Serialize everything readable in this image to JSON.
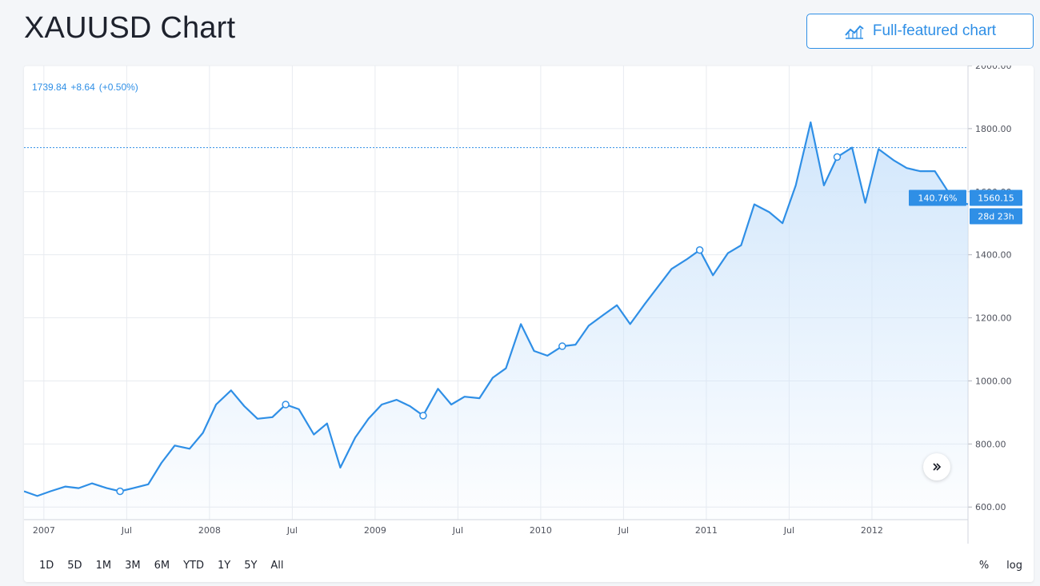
{
  "header": {
    "title": "XAUUSD Chart",
    "full_chart_label": "Full-featured chart"
  },
  "legend": {
    "price": "1739.84",
    "change": "+8.64",
    "change_pct": "(+0.50%)"
  },
  "crosshair": {
    "pct_label": "140.76%",
    "price_label": "1560.15",
    "time_label": "28d 23h",
    "price_line_value": 1739.84
  },
  "toolbar": {
    "ranges": [
      "1D",
      "5D",
      "1M",
      "3M",
      "6M",
      "YTD",
      "1Y",
      "5Y",
      "All"
    ],
    "percent_label": "%",
    "log_label": "log"
  },
  "colors": {
    "line": "#2f8fe6",
    "area_top": "#cfe5fb",
    "grid": "#e8ebf0",
    "badge": "#2f8fe6"
  },
  "chart_data": {
    "type": "area",
    "title": "XAUUSD Chart",
    "ylim": [
      560,
      2000
    ],
    "y_ticks": [
      600,
      800,
      1000,
      1200,
      1400,
      1600,
      1800,
      2000
    ],
    "y_tick_labels": [
      "600.00",
      "800.00",
      "1000.00",
      "1200.00",
      "1400.00",
      "1600.00",
      "1800.00",
      "2000.00"
    ],
    "x_range": [
      2006.88,
      2012.58
    ],
    "x_ticks": [
      {
        "t": 2007.0,
        "label": "2007"
      },
      {
        "t": 2007.5,
        "label": "Jul"
      },
      {
        "t": 2008.0,
        "label": "2008"
      },
      {
        "t": 2008.5,
        "label": "Jul"
      },
      {
        "t": 2009.0,
        "label": "2009"
      },
      {
        "t": 2009.5,
        "label": "Jul"
      },
      {
        "t": 2010.0,
        "label": "2010"
      },
      {
        "t": 2010.5,
        "label": "Jul"
      },
      {
        "t": 2011.0,
        "label": "2011"
      },
      {
        "t": 2011.5,
        "label": "Jul"
      },
      {
        "t": 2012.0,
        "label": "2012"
      }
    ],
    "grid": true,
    "series": [
      {
        "x": [
          2006.88,
          2006.96,
          2007.04,
          2007.13,
          2007.21,
          2007.29,
          2007.38,
          2007.46,
          2007.54,
          2007.63,
          2007.71,
          2007.79,
          2007.88,
          2007.96,
          2008.04,
          2008.13,
          2008.21,
          2008.29,
          2008.38,
          2008.46,
          2008.54,
          2008.63,
          2008.71,
          2008.79,
          2008.88,
          2008.96,
          2009.04,
          2009.13,
          2009.21,
          2009.29,
          2009.38,
          2009.46,
          2009.54,
          2009.63,
          2009.71,
          2009.79,
          2009.88,
          2009.96,
          2010.04,
          2010.13,
          2010.21,
          2010.29,
          2010.38,
          2010.46,
          2010.54,
          2010.63,
          2010.71,
          2010.79,
          2010.88,
          2010.96,
          2011.04,
          2011.13,
          2011.21,
          2011.29,
          2011.38,
          2011.46,
          2011.54,
          2011.63,
          2011.71,
          2011.79,
          2011.88,
          2011.96,
          2012.04,
          2012.13,
          2012.21,
          2012.29,
          2012.38,
          2012.46,
          2012.54,
          2012.58
        ],
        "y": [
          650,
          635,
          650,
          665,
          660,
          675,
          660,
          650,
          660,
          672,
          740,
          795,
          785,
          835,
          925,
          970,
          920,
          880,
          885,
          925,
          910,
          830,
          865,
          725,
          820,
          880,
          925,
          940,
          920,
          890,
          975,
          925,
          950,
          945,
          1010,
          1040,
          1180,
          1095,
          1080,
          1110,
          1115,
          1175,
          1210,
          1240,
          1180,
          1245,
          1300,
          1355,
          1385,
          1415,
          1335,
          1405,
          1430,
          1560,
          1535,
          1500,
          1620,
          1820,
          1620,
          1710,
          1740,
          1565,
          1735,
          1700,
          1675,
          1665,
          1665,
          1600,
          1568,
          1560
        ],
        "markers": [
          2007.5,
          2008.46,
          2009.29,
          2010.13,
          2010.96,
          2011.79
        ]
      }
    ]
  }
}
